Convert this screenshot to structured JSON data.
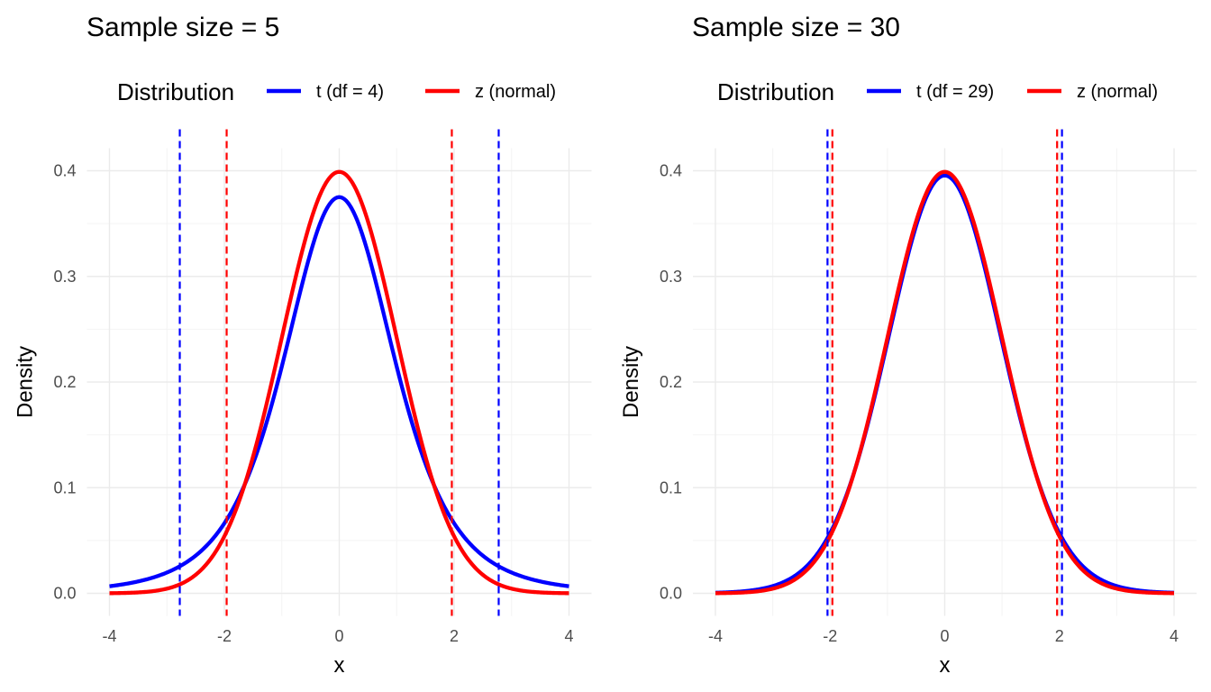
{
  "chart_data": [
    {
      "type": "line",
      "title": "Sample size = 5",
      "xlabel": "x",
      "ylabel": "Density",
      "xlim": [
        -4,
        4
      ],
      "ylim": [
        0,
        0.4
      ],
      "x_ticks": [
        "-4",
        "-2",
        "0",
        "2",
        "4"
      ],
      "y_ticks": [
        "0.0",
        "0.1",
        "0.2",
        "0.3",
        "0.4"
      ],
      "grid": true,
      "legend": {
        "title": "Distribution",
        "position": "top",
        "entries": [
          "t (df = 4)",
          "z (normal)"
        ]
      },
      "series": [
        {
          "name": "t (df = 4)",
          "color": "#0000ff",
          "x": [
            -4,
            -3.5,
            -3,
            -2.5,
            -2,
            -1.5,
            -1,
            -0.5,
            0,
            0.5,
            1,
            1.5,
            2,
            2.5,
            3,
            3.5,
            4
          ],
          "y": [
            0.0066,
            0.0117,
            0.0197,
            0.0336,
            0.0663,
            0.1179,
            0.2147,
            0.32,
            0.375,
            0.32,
            0.2147,
            0.1179,
            0.0663,
            0.0336,
            0.0197,
            0.0117,
            0.0066
          ]
        },
        {
          "name": "z (normal)",
          "color": "#ff0000",
          "x": [
            -4,
            -3.5,
            -3,
            -2.5,
            -2,
            -1.5,
            -1,
            -0.5,
            0,
            0.5,
            1,
            1.5,
            2,
            2.5,
            3,
            3.5,
            4
          ],
          "y": [
            0.0001,
            0.0009,
            0.0044,
            0.0175,
            0.054,
            0.1295,
            0.242,
            0.3521,
            0.3989,
            0.3521,
            0.242,
            0.1295,
            0.054,
            0.0175,
            0.0044,
            0.0009,
            0.0001
          ]
        }
      ],
      "critical_lines": [
        {
          "series": "t (df = 4)",
          "color": "#0000ff",
          "x": [
            -2.776,
            2.776
          ]
        },
        {
          "series": "z (normal)",
          "color": "#ff0000",
          "x": [
            -1.96,
            1.96
          ]
        }
      ]
    },
    {
      "type": "line",
      "title": "Sample size = 30",
      "xlabel": "x",
      "ylabel": "Density",
      "xlim": [
        -4,
        4
      ],
      "ylim": [
        0,
        0.4
      ],
      "x_ticks": [
        "-4",
        "-2",
        "0",
        "2",
        "4"
      ],
      "y_ticks": [
        "0.0",
        "0.1",
        "0.2",
        "0.3",
        "0.4"
      ],
      "grid": true,
      "legend": {
        "title": "Distribution",
        "position": "top",
        "entries": [
          "t (df = 29)",
          "z (normal)"
        ]
      },
      "series": [
        {
          "name": "t (df = 29)",
          "color": "#0000ff",
          "x": [
            -4,
            -3.5,
            -3,
            -2.5,
            -2,
            -1.5,
            -1,
            -0.5,
            0,
            0.5,
            1,
            1.5,
            2,
            2.5,
            3,
            3.5,
            4
          ],
          "y": [
            0.0004,
            0.0017,
            0.0064,
            0.0207,
            0.0573,
            0.1292,
            0.2368,
            0.3469,
            0.395,
            0.3469,
            0.2368,
            0.1292,
            0.0573,
            0.0207,
            0.0064,
            0.0017,
            0.0004
          ]
        },
        {
          "name": "z (normal)",
          "color": "#ff0000",
          "x": [
            -4,
            -3.5,
            -3,
            -2.5,
            -2,
            -1.5,
            -1,
            -0.5,
            0,
            0.5,
            1,
            1.5,
            2,
            2.5,
            3,
            3.5,
            4
          ],
          "y": [
            0.0001,
            0.0009,
            0.0044,
            0.0175,
            0.054,
            0.1295,
            0.242,
            0.3521,
            0.3989,
            0.3521,
            0.242,
            0.1295,
            0.054,
            0.0175,
            0.0044,
            0.0009,
            0.0001
          ]
        }
      ],
      "critical_lines": [
        {
          "series": "t (df = 29)",
          "color": "#0000ff",
          "x": [
            -2.045,
            2.045
          ]
        },
        {
          "series": "z (normal)",
          "color": "#ff0000",
          "x": [
            -1.96,
            1.96
          ]
        }
      ]
    }
  ]
}
